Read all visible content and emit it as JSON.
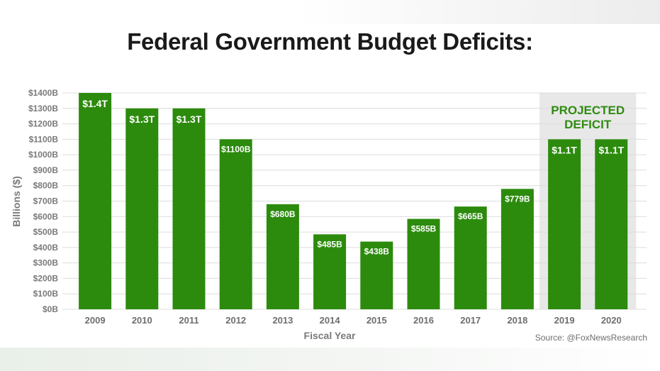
{
  "page": {
    "title": "Federal Government Budget Deficits:",
    "source": "Source: @FoxNewsResearch"
  },
  "colors": {
    "bar": "#2c8b0d",
    "projected_band": "#e8e8e8",
    "projected_text": "#2e8b10",
    "grid": "#dcdcdc"
  },
  "chart_data": {
    "type": "bar",
    "title": "Federal Government Budget Deficits:",
    "xlabel": "Fiscal Year",
    "ylabel": "Billions ($)",
    "ylim": [
      0,
      1400
    ],
    "yticks": [
      0,
      100,
      200,
      300,
      400,
      500,
      600,
      700,
      800,
      900,
      1000,
      1100,
      1200,
      1300,
      1400
    ],
    "ytick_labels": [
      "$0B",
      "$100B",
      "$200B",
      "$300B",
      "$400B",
      "$500B",
      "$600B",
      "$700B",
      "$800B",
      "$900B",
      "$1000B",
      "$1100B",
      "$1200B",
      "$1300B",
      "$1400B"
    ],
    "grid": true,
    "categories": [
      "2009",
      "2010",
      "2011",
      "2012",
      "2013",
      "2014",
      "2015",
      "2016",
      "2017",
      "2018",
      "2019",
      "2020"
    ],
    "values": [
      1400,
      1300,
      1300,
      1100,
      680,
      485,
      438,
      585,
      665,
      779,
      1100,
      1100
    ],
    "data_labels": [
      "$1.4T",
      "$1.3T",
      "$1.3T",
      "$1100B",
      "$680B",
      "$485B",
      "$438B",
      "$585B",
      "$665B",
      "$779B",
      "$1.1T",
      "$1.1T"
    ],
    "projected_categories": [
      "2019",
      "2020"
    ],
    "annotation": [
      "PROJECTED",
      "DEFICIT"
    ]
  }
}
